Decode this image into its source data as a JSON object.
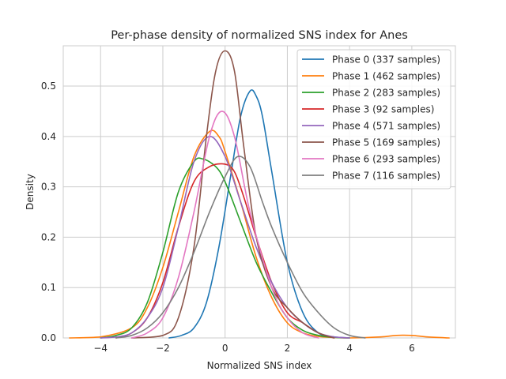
{
  "chart_data": {
    "type": "line",
    "title": "Per-phase density of normalized SNS index for Anes",
    "xlabel": "Normalized SNS index",
    "ylabel": "Density",
    "xlim": [
      -5.2,
      7.4
    ],
    "ylim": [
      0,
      0.58
    ],
    "xticks": [
      -4,
      -2,
      0,
      2,
      4,
      6
    ],
    "xtick_labels": [
      "−4",
      "−2",
      "0",
      "2",
      "4",
      "6"
    ],
    "yticks": [
      0.0,
      0.1,
      0.2,
      0.3,
      0.4,
      0.5
    ],
    "ytick_labels": [
      "0.0",
      "0.1",
      "0.2",
      "0.3",
      "0.4",
      "0.5"
    ],
    "grid": true,
    "legend_position": "top-right",
    "series": [
      {
        "name": "Phase 0 (337 samples)",
        "color": "#1f77b4",
        "x": [
          -1.8,
          -1.4,
          -1.0,
          -0.6,
          -0.2,
          0.2,
          0.5,
          0.8,
          1.0,
          1.2,
          1.5,
          2.0,
          2.5,
          3.0,
          3.5,
          4.0
        ],
        "y": [
          0.0,
          0.005,
          0.02,
          0.07,
          0.18,
          0.33,
          0.44,
          0.49,
          0.48,
          0.44,
          0.33,
          0.15,
          0.05,
          0.01,
          0.002,
          0.0
        ]
      },
      {
        "name": "Phase 1 (462 samples)",
        "color": "#ff7f0e",
        "x": [
          -5.0,
          -4.0,
          -3.0,
          -2.5,
          -2.0,
          -1.5,
          -1.0,
          -0.5,
          -0.2,
          0.0,
          0.5,
          1.0,
          1.5,
          2.0,
          2.5,
          3.0,
          3.5,
          4.0,
          5.0,
          5.5,
          6.0,
          6.5,
          7.2
        ],
        "y": [
          0.0,
          0.002,
          0.02,
          0.06,
          0.14,
          0.25,
          0.36,
          0.41,
          0.4,
          0.37,
          0.27,
          0.16,
          0.08,
          0.03,
          0.01,
          0.003,
          0.001,
          0.0,
          0.002,
          0.005,
          0.005,
          0.002,
          0.0
        ]
      },
      {
        "name": "Phase 2 (283 samples)",
        "color": "#2ca02c",
        "x": [
          -4.0,
          -3.5,
          -3.0,
          -2.5,
          -2.0,
          -1.5,
          -1.0,
          -0.7,
          -0.3,
          0.0,
          0.5,
          1.0,
          1.5,
          2.0,
          2.5,
          3.0,
          3.5,
          4.0
        ],
        "y": [
          0.0,
          0.005,
          0.02,
          0.07,
          0.17,
          0.29,
          0.35,
          0.355,
          0.34,
          0.31,
          0.23,
          0.15,
          0.09,
          0.04,
          0.015,
          0.005,
          0.001,
          0.0
        ]
      },
      {
        "name": "Phase 3 (92 samples)",
        "color": "#d62728",
        "x": [
          -3.5,
          -3.0,
          -2.5,
          -2.0,
          -1.5,
          -1.0,
          -0.5,
          0.0,
          0.3,
          0.6,
          1.0,
          1.5,
          2.0,
          2.5,
          3.0,
          3.5
        ],
        "y": [
          0.0,
          0.01,
          0.04,
          0.11,
          0.22,
          0.31,
          0.34,
          0.345,
          0.33,
          0.28,
          0.2,
          0.11,
          0.05,
          0.03,
          0.01,
          0.0
        ]
      },
      {
        "name": "Phase 4 (571 samples)",
        "color": "#9467bd",
        "x": [
          -4.0,
          -3.5,
          -3.0,
          -2.5,
          -2.0,
          -1.5,
          -1.0,
          -0.5,
          0.0,
          0.5,
          1.0,
          1.5,
          2.0,
          2.5,
          3.0,
          3.5,
          4.0
        ],
        "y": [
          0.0,
          0.002,
          0.01,
          0.04,
          0.1,
          0.22,
          0.35,
          0.4,
          0.36,
          0.27,
          0.18,
          0.11,
          0.06,
          0.03,
          0.01,
          0.002,
          0.0
        ]
      },
      {
        "name": "Phase 5 (169 samples)",
        "color": "#8c564b",
        "x": [
          -3.0,
          -2.0,
          -1.5,
          -1.0,
          -0.6,
          -0.3,
          0.0,
          0.3,
          0.6,
          1.0,
          1.5,
          2.0,
          2.5,
          3.0,
          3.5
        ],
        "y": [
          0.0,
          0.005,
          0.04,
          0.18,
          0.4,
          0.53,
          0.57,
          0.53,
          0.38,
          0.2,
          0.1,
          0.06,
          0.03,
          0.01,
          0.0
        ]
      },
      {
        "name": "Phase 6 (293 samples)",
        "color": "#e377c2",
        "x": [
          -3.0,
          -2.5,
          -2.0,
          -1.5,
          -1.0,
          -0.5,
          -0.1,
          0.3,
          0.8,
          1.5,
          2.0,
          2.5,
          3.0
        ],
        "y": [
          0.0,
          0.01,
          0.04,
          0.12,
          0.25,
          0.4,
          0.45,
          0.4,
          0.25,
          0.1,
          0.04,
          0.01,
          0.0
        ]
      },
      {
        "name": "Phase 7 (116 samples)",
        "color": "#7f7f7f",
        "x": [
          -3.5,
          -3.0,
          -2.5,
          -2.0,
          -1.5,
          -1.0,
          -0.5,
          0.0,
          0.4,
          0.8,
          1.2,
          1.5,
          2.0,
          2.5,
          3.0,
          3.5,
          4.0,
          4.5
        ],
        "y": [
          0.0,
          0.005,
          0.02,
          0.05,
          0.1,
          0.17,
          0.25,
          0.32,
          0.36,
          0.34,
          0.27,
          0.22,
          0.15,
          0.09,
          0.05,
          0.02,
          0.005,
          0.0
        ]
      }
    ]
  }
}
